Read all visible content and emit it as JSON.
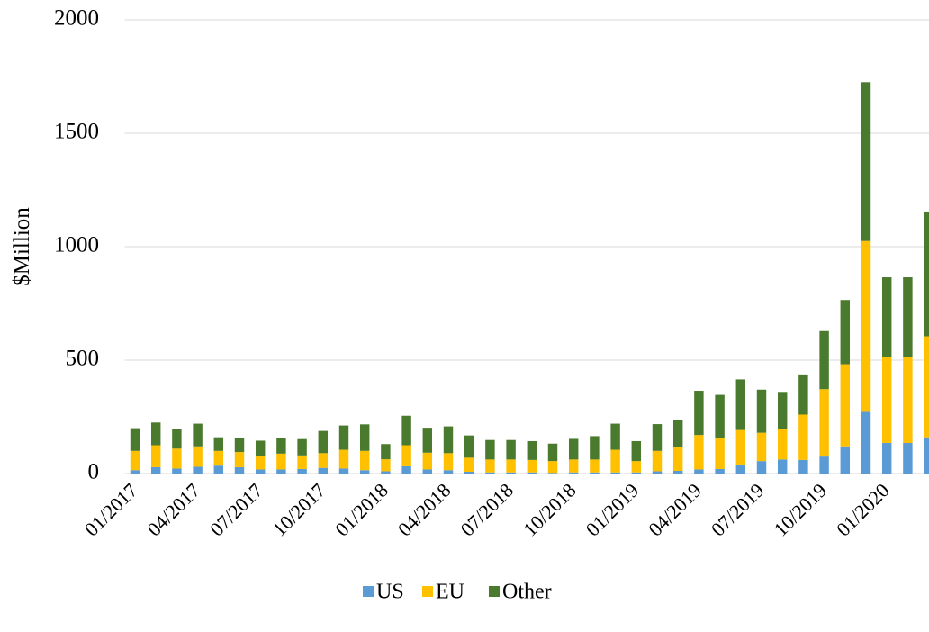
{
  "chart_data": {
    "type": "stacked_bar",
    "y_label": "$Million",
    "categories": [
      "01/2017",
      null,
      null,
      "04/2017",
      null,
      null,
      "07/2017",
      null,
      null,
      "10/2017",
      null,
      null,
      "01/2018",
      null,
      null,
      "04/2018",
      null,
      null,
      "07/2018",
      null,
      null,
      "10/2018",
      null,
      null,
      "01/2019",
      null,
      null,
      "04/2019",
      null,
      null,
      "07/2019",
      null,
      null,
      "10/2019",
      null,
      null,
      "01/2020",
      null,
      null
    ],
    "series": [
      {
        "name": "US",
        "color": "#5b9bd5",
        "values": [
          15,
          28,
          22,
          30,
          35,
          28,
          18,
          18,
          20,
          25,
          22,
          15,
          10,
          32,
          18,
          15,
          8,
          5,
          5,
          5,
          3,
          5,
          5,
          5,
          5,
          10,
          12,
          18,
          20,
          40,
          55,
          62,
          60,
          75,
          120,
          272,
          135,
          135,
          160
        ]
      },
      {
        "name": "EU",
        "color": "#ffc000",
        "values": [
          85,
          97,
          88,
          90,
          65,
          67,
          60,
          70,
          60,
          65,
          83,
          85,
          53,
          93,
          74,
          75,
          62,
          57,
          57,
          55,
          52,
          57,
          57,
          100,
          50,
          90,
          106,
          152,
          138,
          152,
          125,
          133,
          200,
          297,
          362,
          753,
          377,
          377,
          445
        ]
      },
      {
        "name": "Other",
        "color": "#4a7a2e",
        "values": [
          100,
          100,
          88,
          100,
          60,
          63,
          67,
          67,
          72,
          98,
          107,
          117,
          67,
          130,
          110,
          118,
          98,
          86,
          86,
          83,
          77,
          91,
          103,
          115,
          88,
          118,
          119,
          195,
          189,
          223,
          190,
          165,
          177,
          256,
          283,
          700,
          353,
          353,
          550
        ]
      }
    ],
    "ylim": [
      0,
      2000
    ],
    "yticks": [
      0,
      500,
      1000,
      1500,
      2000
    ],
    "grid": true,
    "legend": "bottom"
  }
}
